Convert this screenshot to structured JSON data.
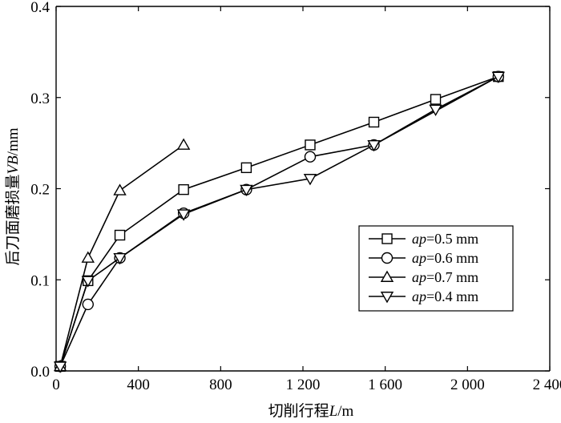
{
  "chart_data": {
    "type": "line",
    "xlabel": "切削行程L/m",
    "ylabel": "后刀面磨损量VB/mm",
    "xlim": [
      0,
      2400
    ],
    "ylim": [
      0.0,
      0.4
    ],
    "x_ticks": [
      0,
      400,
      800,
      1200,
      1600,
      2000,
      2400
    ],
    "x_tick_labels": [
      "0",
      "400",
      "800",
      "1 200",
      "1 600",
      "2 000",
      "2 400"
    ],
    "y_ticks": [
      0.0,
      0.1,
      0.2,
      0.3,
      0.4
    ],
    "y_tick_labels": [
      "0.0",
      "0.1",
      "0.2",
      "0.3",
      "0.4"
    ],
    "grid": false,
    "legend_position": "center-right",
    "series": [
      {
        "name": "ap=0.5 mm",
        "marker": "square",
        "x": [
          20,
          155,
          310,
          620,
          925,
          1235,
          1545,
          1845,
          2150
        ],
        "y": [
          0.005,
          0.099,
          0.149,
          0.199,
          0.223,
          0.248,
          0.273,
          0.298,
          0.323
        ]
      },
      {
        "name": "ap=0.6 mm",
        "marker": "circle",
        "x": [
          20,
          155,
          310,
          620,
          925,
          1235,
          1545,
          2150
        ],
        "y": [
          0.005,
          0.073,
          0.124,
          0.173,
          0.199,
          0.235,
          0.248,
          0.323
        ]
      },
      {
        "name": "ap=0.7 mm",
        "marker": "triangle-up",
        "x": [
          20,
          155,
          310,
          620
        ],
        "y": [
          0.005,
          0.124,
          0.198,
          0.248
        ]
      },
      {
        "name": "ap=0.4 mm",
        "marker": "triangle-down",
        "x": [
          20,
          155,
          310,
          620,
          925,
          1235,
          1545,
          1845,
          2150
        ],
        "y": [
          0.005,
          0.099,
          0.124,
          0.172,
          0.199,
          0.211,
          0.248,
          0.287,
          0.323
        ]
      }
    ],
    "legend_labels": [
      {
        "italic": "ap",
        "rest": "=0.5 mm"
      },
      {
        "italic": "ap",
        "rest": "=0.6 mm"
      },
      {
        "italic": "ap",
        "rest": "=0.7 mm"
      },
      {
        "italic": "ap",
        "rest": "=0.4 mm"
      }
    ],
    "xlabel_parts": {
      "prefix": "切削行程",
      "italic": "L",
      "suffix": "/m"
    },
    "ylabel_parts": {
      "prefix": "后刀面磨损量",
      "italic": "VB",
      "suffix": "/mm"
    }
  }
}
